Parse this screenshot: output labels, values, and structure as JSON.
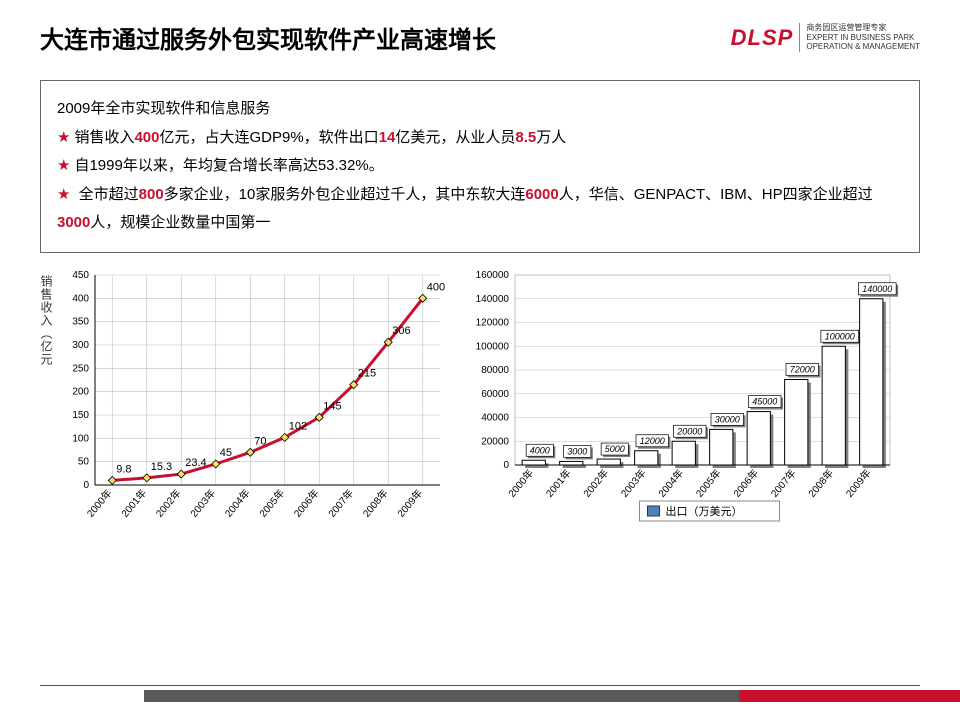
{
  "header": {
    "title": "大连市通过服务外包实现软件产业高速增长",
    "logo": "DLSP",
    "logo_sub1": "商务园区运营管理专家",
    "logo_sub2": "EXPERT IN BUSINESS PARK",
    "logo_sub3": "OPERATION & MANAGEMENT"
  },
  "info": {
    "line0": "2009年全市实现软件和信息服务",
    "line1_pre": "销售收入",
    "line1_v1": "400",
    "line1_mid1": "亿元，占大连GDP9%，软件出口",
    "line1_v2": "14",
    "line1_mid2": "亿美元，从业人员",
    "line1_v3": "8.5",
    "line1_end": "万人",
    "line2": "自1999年以来，年均复合增长率高达53.32%。",
    "line3_a": "全市超过",
    "line3_v1": "800",
    "line3_b": "多家企业，10家服务外包企业超过千人，其中东软大连",
    "line3_v2": "6000",
    "line3_c": "人，华信、GENPACT、IBM、HP四家企业超过",
    "line3_v3": "3000",
    "line3_d": "人，规模企业数量中国第一"
  },
  "chart1": {
    "type": "line",
    "y_axis_label": "销售收入（亿元",
    "categories": [
      "2000年",
      "2001年",
      "2002年",
      "2003年",
      "2004年",
      "2005年",
      "2006年",
      "2007年",
      "2008年",
      "2009年"
    ],
    "values": [
      9.8,
      15.3,
      23.4,
      45,
      70,
      102,
      145,
      215,
      306,
      400
    ],
    "labels": [
      "9.8",
      "15.3",
      "23.4",
      "45",
      "70",
      "102",
      "145",
      "215",
      "306",
      "400"
    ],
    "ylim": [
      0,
      450
    ],
    "ytick_step": 50,
    "line_color": "#c8102e",
    "line_width": 3,
    "marker_fill": "#ffd966",
    "marker_stroke": "#000000",
    "grid_color": "#bfbfbf",
    "axis_color": "#000000",
    "background": "#ffffff",
    "label_fontsize": 11,
    "tick_fontsize": 10
  },
  "chart2": {
    "type": "bar",
    "categories": [
      "2000年",
      "2001年",
      "2002年",
      "2003年",
      "2004年",
      "2005年",
      "2006年",
      "2007年",
      "2008年",
      "2009年"
    ],
    "values": [
      4000,
      3000,
      5000,
      12000,
      20000,
      30000,
      45000,
      72000,
      100000,
      140000
    ],
    "labels": [
      "4000",
      "3000",
      "5000",
      "12000",
      "20000",
      "30000",
      "45000",
      "72000",
      "100000",
      "140000"
    ],
    "ylim": [
      0,
      160000
    ],
    "ytick_step": 20000,
    "bar_face": "#ffffff",
    "bar_stroke": "#000000",
    "shadow_color": "#808080",
    "grid_color": "#bfbfbf",
    "axis_color": "#000000",
    "background": "#ffffff",
    "legend_label": "出口（万美元）",
    "legend_box_color": "#4f81bd",
    "label_fontsize": 9,
    "tick_fontsize": 10
  }
}
